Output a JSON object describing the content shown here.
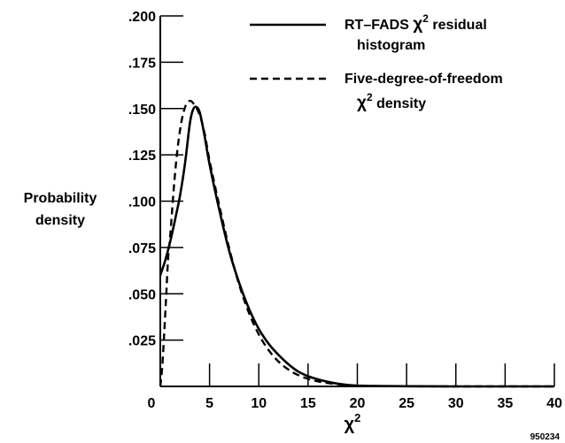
{
  "chart_data": {
    "type": "line",
    "xlabel_base": "χ",
    "xlabel_sup": "2",
    "ylabel_lines": [
      "Probability",
      "density"
    ],
    "xlim": [
      0,
      40
    ],
    "ylim": [
      0,
      0.2
    ],
    "x_ticks": [
      0,
      5,
      10,
      15,
      20,
      25,
      30,
      35,
      40
    ],
    "x_tick_labels": [
      "0",
      "5",
      "10",
      "15",
      "20",
      "25",
      "30",
      "35",
      "40"
    ],
    "y_ticks": [
      0.025,
      0.05,
      0.075,
      0.1,
      0.125,
      0.15,
      0.175,
      0.2
    ],
    "y_tick_labels": [
      ".025",
      ".050",
      ".075",
      ".100",
      ".125",
      ".150",
      ".175",
      ".200"
    ],
    "grid": false,
    "legend_position": "top-right",
    "series": [
      {
        "name_line1_pre": "RT–FADS ",
        "name_line1_sym": "χ",
        "name_line1_sup": "2",
        "name_line1_post": " residual",
        "name_line2": "histogram",
        "style": "solid",
        "x": [
          0.0,
          0.5,
          1.0,
          1.5,
          2.0,
          2.5,
          3.0,
          3.3,
          3.6,
          4.0,
          4.5,
          5.0,
          6.0,
          7.0,
          8.0,
          9.0,
          10.0,
          11.0,
          12.0,
          13.0,
          14.0,
          15.0,
          16.0,
          17.0,
          18.0,
          19.0,
          20.0,
          22.0,
          25.0,
          30.0,
          35.0,
          40.0
        ],
        "y": [
          0.06,
          0.068,
          0.078,
          0.09,
          0.103,
          0.12,
          0.142,
          0.149,
          0.151,
          0.148,
          0.135,
          0.12,
          0.095,
          0.073,
          0.056,
          0.042,
          0.031,
          0.023,
          0.017,
          0.012,
          0.008,
          0.0055,
          0.0038,
          0.0025,
          0.0015,
          0.0008,
          0.0004,
          0.0002,
          0.0001,
          0.0,
          0.0,
          0.0
        ]
      },
      {
        "name_line1": "Five-degree-of-freedom",
        "name_line2_sym": "χ",
        "name_line2_sup": "2",
        "name_line2_post": " density",
        "style": "dashed",
        "x": [
          0.0,
          0.2,
          0.4,
          0.6,
          0.8,
          1.0,
          1.5,
          2.0,
          2.5,
          3.0,
          3.5,
          4.0,
          4.5,
          5.0,
          6.0,
          7.0,
          8.0,
          9.0,
          10.0,
          11.0,
          12.0,
          13.0,
          14.0,
          15.0,
          16.0,
          17.0,
          18.0,
          19.0,
          20.0,
          22.0,
          25.0,
          30.0,
          35.0,
          40.0
        ],
        "y": [
          0.0,
          0.0107,
          0.0287,
          0.0491,
          0.0699,
          0.0807,
          0.1151,
          0.1384,
          0.1505,
          0.1542,
          0.1517,
          0.1465,
          0.1365,
          0.122,
          0.0973,
          0.0744,
          0.055,
          0.0397,
          0.028,
          0.0195,
          0.0134,
          0.0091,
          0.0061,
          0.0041,
          0.0027,
          0.0018,
          0.0012,
          0.0008,
          0.0005,
          0.0002,
          0.0001,
          0.0,
          0.0,
          0.0
        ]
      }
    ]
  },
  "figure_id": "950234"
}
